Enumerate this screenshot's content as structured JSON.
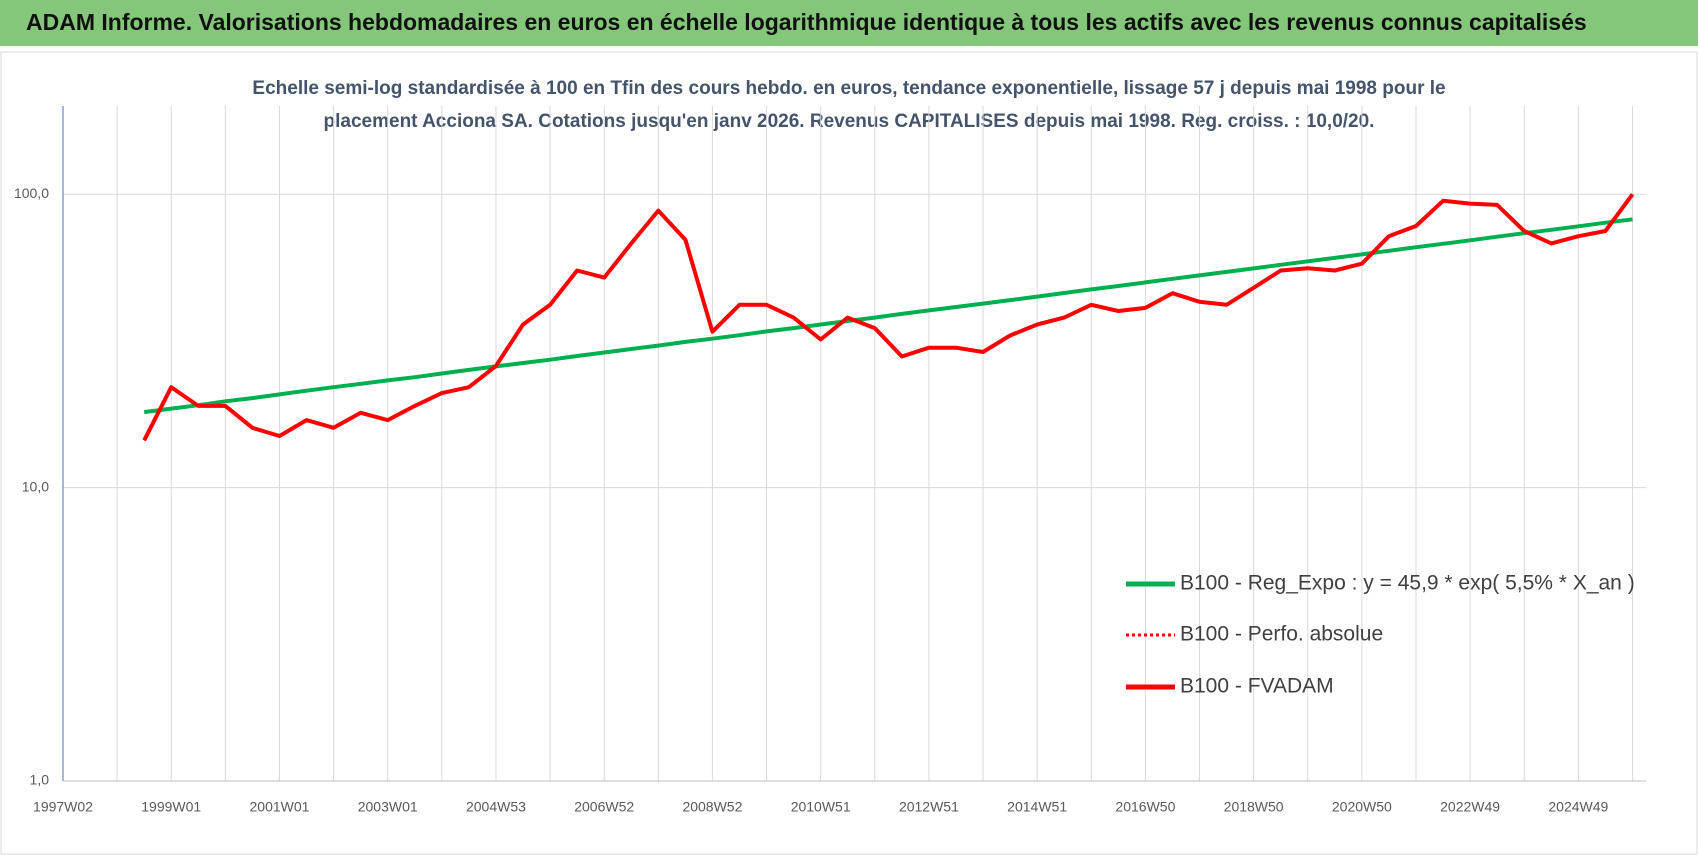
{
  "chart_data": {
    "type": "line",
    "title": "ADAM Informe. Valorisations hebdomadaires en euros en échelle logarithmique identique à tous les actifs avec les revenus connus capitalisés",
    "subtitle": [
      "Echelle semi-log standardisée à 100 en Tfin des cours hebdo. en euros, tendance exponentielle, lissage 57 j depuis mai 1998 pour le",
      "placement Acciona SA. Cotations jusqu'en janv 2026. Revenus CAPITALISES depuis mai 1998. Reg. croiss. : 10,0/20."
    ],
    "categories": [
      "1997W02",
      null,
      null,
      null,
      "1999W01",
      null,
      null,
      null,
      "2001W01",
      null,
      null,
      null,
      "2003W01",
      null,
      null,
      null,
      "2004W53",
      null,
      null,
      null,
      "2006W52",
      null,
      null,
      null,
      "2008W52",
      null,
      null,
      null,
      "2010W51",
      null,
      null,
      null,
      "2012W51",
      null,
      null,
      null,
      "2014W51",
      null,
      null,
      null,
      "2016W50",
      null,
      null,
      null,
      "2018W50",
      null,
      null,
      null,
      "2020W50",
      null,
      null,
      null,
      "2022W49",
      null,
      null,
      null,
      "2024W49",
      null,
      null
    ],
    "log_scale": true,
    "ylim": [
      1,
      200
    ],
    "yticks": [
      {
        "value": 1,
        "label": "1,0"
      },
      {
        "value": 10,
        "label": "10,0"
      },
      {
        "value": 100,
        "label": "100,0"
      }
    ],
    "grid": true,
    "legend": "lower-right",
    "series": [
      {
        "name": "B100 - Reg_Expo : y = 45,9 * exp( 5,5% *  X_an )",
        "color": "#00b050",
        "style": "solid",
        "values": [
          null,
          null,
          null,
          18.1,
          18.6,
          19.1,
          19.7,
          20.2,
          20.8,
          21.4,
          22.0,
          22.6,
          23.2,
          23.8,
          24.5,
          25.2,
          25.9,
          26.6,
          27.3,
          28.1,
          28.9,
          29.7,
          30.5,
          31.4,
          32.2,
          33.1,
          34.1,
          35.0,
          36.0,
          37.0,
          38.0,
          39.1,
          40.2,
          41.3,
          42.4,
          43.6,
          44.8,
          46.1,
          47.4,
          48.7,
          50.1,
          51.5,
          52.9,
          54.4,
          55.9,
          57.5,
          59.1,
          60.7,
          62.4,
          64.2,
          66.0,
          67.8,
          69.7,
          71.7,
          73.7,
          75.7,
          77.8,
          80.0,
          82.2
        ]
      },
      {
        "name": "B100 - Perfo. absolue",
        "color": "#ff0000",
        "style": "dotted",
        "values": [
          null,
          null,
          null,
          14.5,
          22,
          19,
          19,
          16,
          15,
          17,
          16,
          18,
          17,
          19,
          21,
          22,
          26,
          36,
          42,
          55,
          52,
          68,
          88,
          70,
          34,
          42,
          42,
          38,
          32,
          38,
          35,
          28,
          30,
          30,
          29,
          33,
          36,
          38,
          42,
          40,
          41,
          46,
          43,
          42,
          48,
          55,
          56,
          55,
          58,
          72,
          78,
          95,
          93,
          92,
          75,
          68,
          72,
          75,
          100
        ]
      },
      {
        "name": "B100 - FVADAM",
        "color": "#ff0000",
        "style": "solid",
        "values": [
          null,
          null,
          null,
          14.5,
          22,
          19,
          19,
          16,
          15,
          17,
          16,
          18,
          17,
          19,
          21,
          22,
          26,
          36,
          42,
          55,
          52,
          68,
          88,
          70,
          34,
          42,
          42,
          38,
          32,
          38,
          35,
          28,
          30,
          30,
          29,
          33,
          36,
          38,
          42,
          40,
          41,
          46,
          43,
          42,
          48,
          55,
          56,
          55,
          58,
          72,
          78,
          95,
          93,
          92,
          75,
          68,
          72,
          75,
          100
        ]
      }
    ]
  }
}
